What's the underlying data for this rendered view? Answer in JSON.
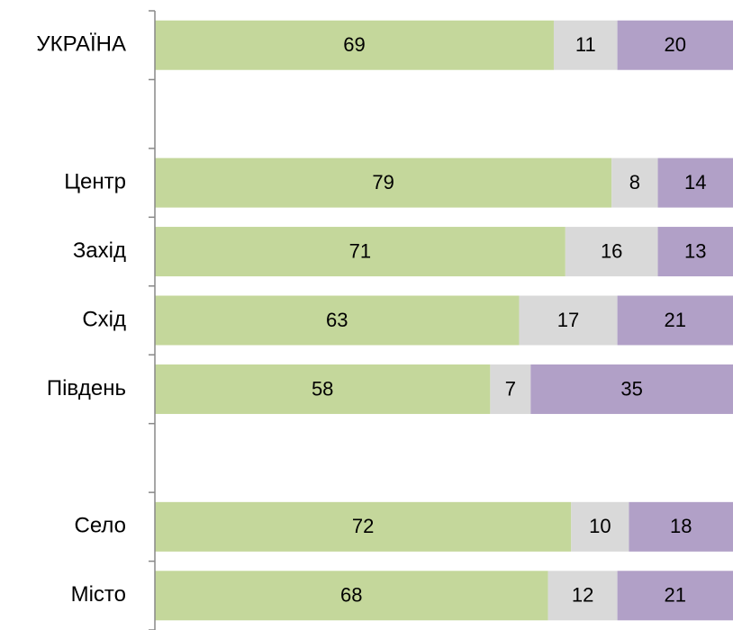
{
  "chart_data": {
    "type": "stacked-bar-horizontal",
    "categories": [
      "УКРАЇНА",
      null,
      "Центр",
      "Захід",
      "Схід",
      "Південь",
      null,
      "Село",
      "Місто"
    ],
    "series": [
      {
        "color": "#c4d79b",
        "values": [
          69,
          null,
          79,
          71,
          63,
          58,
          null,
          72,
          68
        ]
      },
      {
        "color": "#d9d9d9",
        "values": [
          11,
          null,
          8,
          16,
          17,
          7,
          null,
          10,
          12
        ]
      },
      {
        "color": "#b1a0c7",
        "values": [
          20,
          null,
          14,
          13,
          21,
          35,
          null,
          18,
          21
        ]
      }
    ],
    "xlim": [
      0,
      100
    ]
  }
}
